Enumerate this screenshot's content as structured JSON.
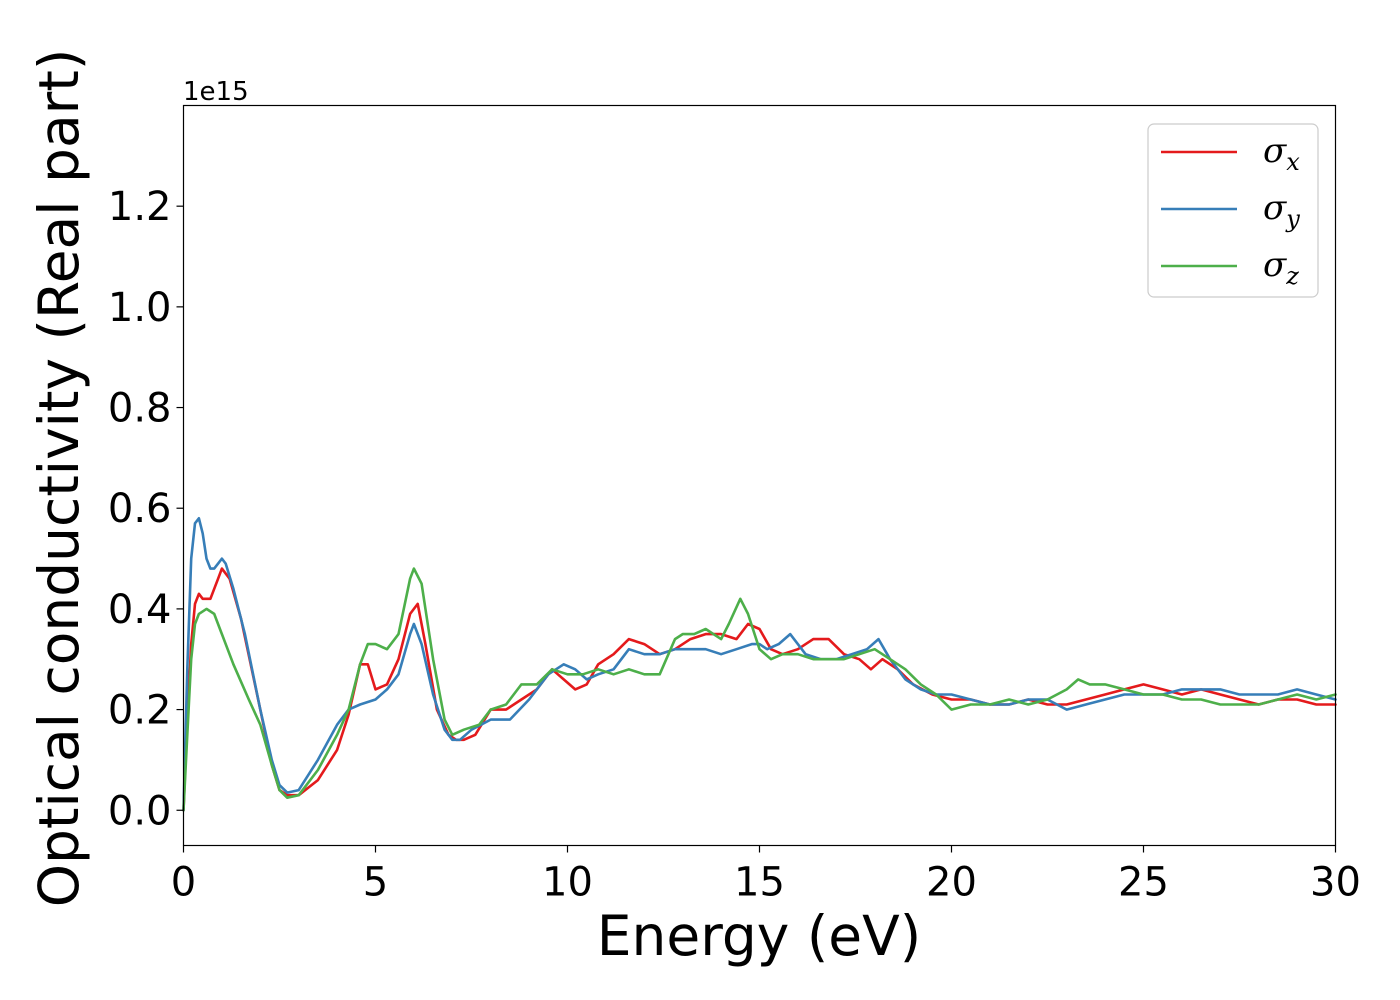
{
  "chart_data": {
    "type": "line",
    "title": "",
    "xlabel": "Energy (eV)",
    "ylabel": "Optical conductivity (Real part)",
    "y_offset_label": "1e15",
    "y_scale_factor": 1000000000000000.0,
    "xlim": [
      0,
      30
    ],
    "ylim": [
      -0.07,
      1.4
    ],
    "xticks": [
      0,
      5,
      10,
      15,
      20,
      25,
      30
    ],
    "xtick_labels": [
      "0",
      "5",
      "10",
      "15",
      "20",
      "25",
      "30"
    ],
    "yticks": [
      0.0,
      0.2,
      0.4,
      0.6,
      0.8,
      1.0,
      1.2
    ],
    "ytick_labels": [
      "0.0",
      "0.2",
      "0.4",
      "0.6",
      "0.8",
      "1.0",
      "1.2"
    ],
    "grid": false,
    "legend_position": "top-right",
    "series": [
      {
        "name": "σx",
        "sub": "x",
        "color": "#e41a1c",
        "x": [
          0,
          0.1,
          0.2,
          0.3,
          0.4,
          0.5,
          0.7,
          0.9,
          1.0,
          1.2,
          1.5,
          2.0,
          2.3,
          2.5,
          2.7,
          3.0,
          3.5,
          4.0,
          4.3,
          4.6,
          4.8,
          5.0,
          5.3,
          5.6,
          5.9,
          6.1,
          6.3,
          6.6,
          6.9,
          7.1,
          7.3,
          7.6,
          8.0,
          8.4,
          8.8,
          9.2,
          9.6,
          9.9,
          10.2,
          10.5,
          10.8,
          11.2,
          11.6,
          12.0,
          12.4,
          12.8,
          13.2,
          13.6,
          14.0,
          14.4,
          14.7,
          15.0,
          15.3,
          15.6,
          16.0,
          16.4,
          16.8,
          17.2,
          17.6,
          17.9,
          18.2,
          18.6,
          19.0,
          19.5,
          20.0,
          20.5,
          21.0,
          21.5,
          22.0,
          22.5,
          23.0,
          23.5,
          24.0,
          24.5,
          25.0,
          25.5,
          26.0,
          26.5,
          27.0,
          27.5,
          28.0,
          28.5,
          29.0,
          29.5,
          30.0
        ],
        "values": [
          0.0,
          0.18,
          0.33,
          0.41,
          0.43,
          0.42,
          0.42,
          0.46,
          0.48,
          0.46,
          0.38,
          0.2,
          0.09,
          0.04,
          0.03,
          0.03,
          0.06,
          0.12,
          0.19,
          0.29,
          0.29,
          0.24,
          0.25,
          0.3,
          0.39,
          0.41,
          0.33,
          0.2,
          0.15,
          0.14,
          0.14,
          0.15,
          0.2,
          0.2,
          0.22,
          0.24,
          0.28,
          0.26,
          0.24,
          0.25,
          0.29,
          0.31,
          0.34,
          0.33,
          0.31,
          0.32,
          0.34,
          0.35,
          0.35,
          0.34,
          0.37,
          0.36,
          0.32,
          0.31,
          0.32,
          0.34,
          0.34,
          0.31,
          0.3,
          0.28,
          0.3,
          0.28,
          0.25,
          0.23,
          0.22,
          0.22,
          0.21,
          0.21,
          0.22,
          0.21,
          0.21,
          0.22,
          0.23,
          0.24,
          0.25,
          0.24,
          0.23,
          0.24,
          0.23,
          0.22,
          0.21,
          0.22,
          0.22,
          0.21,
          0.21
        ]
      },
      {
        "name": "σy",
        "sub": "y",
        "color": "#377eb8",
        "x": [
          0,
          0.1,
          0.2,
          0.3,
          0.4,
          0.5,
          0.6,
          0.7,
          0.8,
          0.9,
          1.0,
          1.1,
          1.3,
          1.6,
          2.0,
          2.3,
          2.5,
          2.7,
          3.0,
          3.5,
          4.0,
          4.3,
          4.6,
          5.0,
          5.3,
          5.6,
          5.9,
          6.0,
          6.2,
          6.5,
          6.8,
          7.0,
          7.2,
          7.5,
          8.0,
          8.5,
          9.0,
          9.5,
          9.9,
          10.2,
          10.5,
          10.8,
          11.2,
          11.6,
          12.0,
          12.4,
          12.8,
          13.2,
          13.6,
          14.0,
          14.4,
          14.8,
          15.0,
          15.2,
          15.5,
          15.8,
          16.2,
          16.6,
          17.0,
          17.4,
          17.8,
          18.1,
          18.4,
          18.8,
          19.2,
          19.6,
          20.0,
          20.5,
          21.0,
          21.5,
          22.0,
          22.5,
          23.0,
          23.5,
          24.0,
          24.5,
          25.0,
          25.5,
          26.0,
          26.5,
          27.0,
          27.5,
          28.0,
          28.5,
          29.0,
          29.5,
          30.0
        ],
        "values": [
          0.0,
          0.28,
          0.5,
          0.57,
          0.58,
          0.55,
          0.5,
          0.48,
          0.48,
          0.49,
          0.5,
          0.49,
          0.44,
          0.35,
          0.2,
          0.1,
          0.05,
          0.035,
          0.04,
          0.1,
          0.17,
          0.2,
          0.21,
          0.22,
          0.24,
          0.27,
          0.35,
          0.37,
          0.33,
          0.23,
          0.16,
          0.14,
          0.14,
          0.16,
          0.18,
          0.18,
          0.22,
          0.27,
          0.29,
          0.28,
          0.26,
          0.27,
          0.28,
          0.32,
          0.31,
          0.31,
          0.32,
          0.32,
          0.32,
          0.31,
          0.32,
          0.33,
          0.33,
          0.32,
          0.33,
          0.35,
          0.31,
          0.3,
          0.3,
          0.31,
          0.32,
          0.34,
          0.3,
          0.26,
          0.24,
          0.23,
          0.23,
          0.22,
          0.21,
          0.21,
          0.22,
          0.22,
          0.2,
          0.21,
          0.22,
          0.23,
          0.23,
          0.23,
          0.24,
          0.24,
          0.24,
          0.23,
          0.23,
          0.23,
          0.24,
          0.23,
          0.22
        ]
      },
      {
        "name": "σz",
        "sub": "z",
        "color": "#4daf4a",
        "x": [
          0,
          0.1,
          0.2,
          0.3,
          0.4,
          0.6,
          0.8,
          1.0,
          1.3,
          1.7,
          2.0,
          2.3,
          2.5,
          2.7,
          3.0,
          3.5,
          4.0,
          4.3,
          4.6,
          4.8,
          5.0,
          5.3,
          5.6,
          5.9,
          6.0,
          6.2,
          6.5,
          6.8,
          7.0,
          7.3,
          7.7,
          8.0,
          8.4,
          8.8,
          9.2,
          9.6,
          10.0,
          10.4,
          10.8,
          11.2,
          11.6,
          12.0,
          12.4,
          12.8,
          13.0,
          13.3,
          13.6,
          14.0,
          14.2,
          14.5,
          14.7,
          15.0,
          15.3,
          15.6,
          16.0,
          16.4,
          16.8,
          17.2,
          17.6,
          18.0,
          18.4,
          18.8,
          19.2,
          19.6,
          20.0,
          20.5,
          21.0,
          21.5,
          22.0,
          22.5,
          23.0,
          23.3,
          23.6,
          24.0,
          24.5,
          25.0,
          25.5,
          26.0,
          26.5,
          27.0,
          27.5,
          28.0,
          28.5,
          29.0,
          29.5,
          30.0
        ],
        "values": [
          0.0,
          0.15,
          0.3,
          0.37,
          0.39,
          0.4,
          0.39,
          0.35,
          0.29,
          0.22,
          0.17,
          0.09,
          0.04,
          0.025,
          0.03,
          0.08,
          0.15,
          0.2,
          0.29,
          0.33,
          0.33,
          0.32,
          0.35,
          0.46,
          0.48,
          0.45,
          0.3,
          0.18,
          0.15,
          0.16,
          0.17,
          0.2,
          0.21,
          0.25,
          0.25,
          0.28,
          0.27,
          0.27,
          0.28,
          0.27,
          0.28,
          0.27,
          0.27,
          0.34,
          0.35,
          0.35,
          0.36,
          0.34,
          0.37,
          0.42,
          0.39,
          0.32,
          0.3,
          0.31,
          0.31,
          0.3,
          0.3,
          0.3,
          0.31,
          0.32,
          0.3,
          0.28,
          0.25,
          0.23,
          0.2,
          0.21,
          0.21,
          0.22,
          0.21,
          0.22,
          0.24,
          0.26,
          0.25,
          0.25,
          0.24,
          0.23,
          0.23,
          0.22,
          0.22,
          0.21,
          0.21,
          0.21,
          0.22,
          0.23,
          0.22,
          0.23
        ]
      }
    ]
  }
}
